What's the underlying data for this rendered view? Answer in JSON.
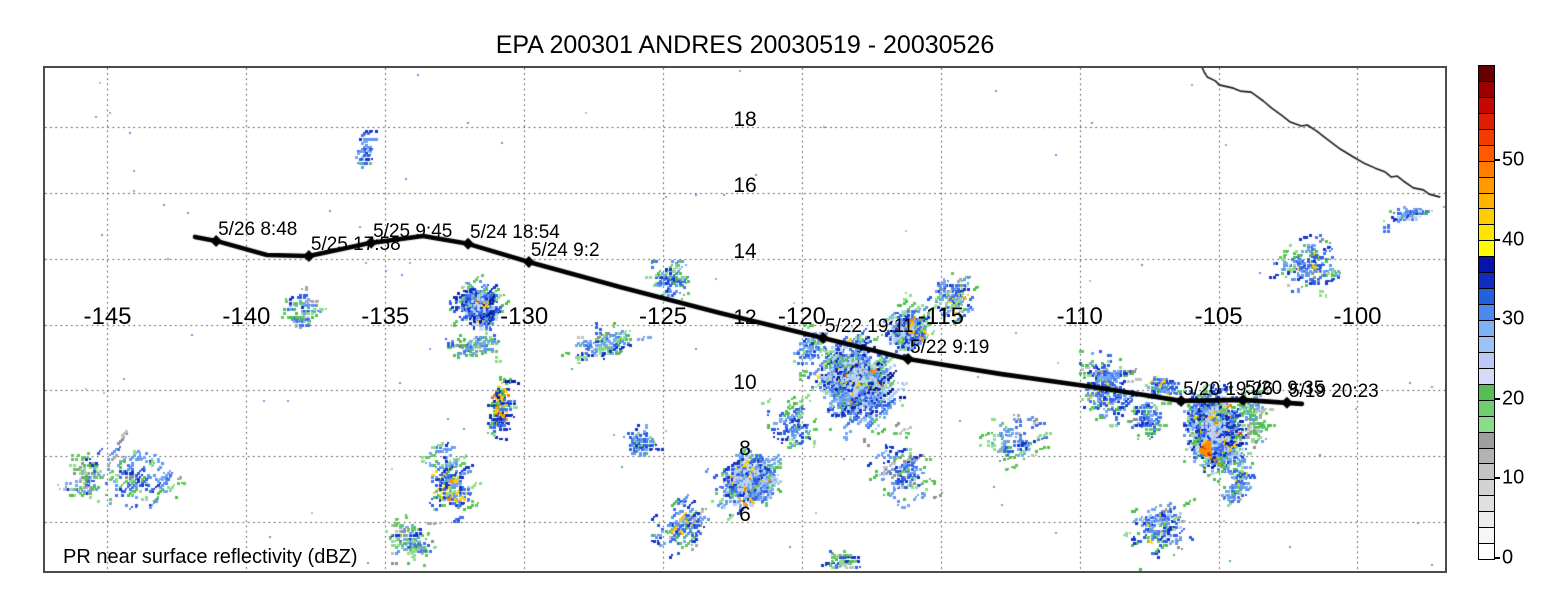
{
  "chart_data": {
    "type": "map-track",
    "title": "EPA 200301 ANDRES 20030519 - 20030526",
    "footer": "PR near surface reflectivity (dBZ)",
    "lon_range": [
      -147.25,
      -96.85
    ],
    "lat_range": [
      4.512,
      19.792
    ],
    "lon_ticks": [
      {
        "value": -145,
        "label": "-145"
      },
      {
        "value": -140,
        "label": "-140"
      },
      {
        "value": -135,
        "label": "-135"
      },
      {
        "value": -130,
        "label": "-130"
      },
      {
        "value": -125,
        "label": "-125"
      },
      {
        "value": -120,
        "label": "-120"
      },
      {
        "value": -115,
        "label": "-115"
      },
      {
        "value": -110,
        "label": "-110"
      },
      {
        "value": -105,
        "label": "-105"
      },
      {
        "value": -100,
        "label": "-100"
      }
    ],
    "lat_ticks": [
      {
        "value": 18,
        "label": "18"
      },
      {
        "value": 16,
        "label": "16"
      },
      {
        "value": 14,
        "label": "14"
      },
      {
        "value": 12,
        "label": "12"
      },
      {
        "value": 10,
        "label": "10"
      },
      {
        "value": 8,
        "label": "8"
      },
      {
        "value": 6,
        "label": "6"
      }
    ],
    "track": [
      {
        "lon": -141.85,
        "lat": 14.66
      },
      {
        "lon": -141.09,
        "lat": 14.54,
        "label": "5/26 8:48"
      },
      {
        "lon": -139.26,
        "lat": 14.11
      },
      {
        "lon": -137.75,
        "lat": 14.08,
        "label": "5/25 17:58"
      },
      {
        "lon": -135.51,
        "lat": 14.48,
        "label": "5/25 9:45"
      },
      {
        "lon": -133.64,
        "lat": 14.69
      },
      {
        "lon": -132.02,
        "lat": 14.45,
        "label": "5/24 18:54"
      },
      {
        "lon": -129.83,
        "lat": 13.9,
        "label": "5/24 9:2"
      },
      {
        "lon": -126.55,
        "lat": 13.14
      },
      {
        "lon": -122.95,
        "lat": 12.35
      },
      {
        "lon": -119.24,
        "lat": 11.59,
        "label": "5/22 19:11"
      },
      {
        "lon": -116.18,
        "lat": 10.95,
        "label": "5/22 9:19"
      },
      {
        "lon": -112.87,
        "lat": 10.5
      },
      {
        "lon": -109.27,
        "lat": 10.07
      },
      {
        "lon": -106.35,
        "lat": 9.68,
        "label": "5/20 19:26"
      },
      {
        "lon": -104.12,
        "lat": 9.71,
        "label": "5/20 9:35"
      },
      {
        "lon": -102.54,
        "lat": 9.62,
        "label": "5/19 20:23"
      },
      {
        "lon": -102.0,
        "lat": 9.59
      }
    ],
    "coastline": [
      [
        -105.63,
        19.88
      ],
      [
        -105.52,
        19.67
      ],
      [
        -105.41,
        19.52
      ],
      [
        -105.12,
        19.4
      ],
      [
        -104.98,
        19.28
      ],
      [
        -104.47,
        19.18
      ],
      [
        -104.22,
        19.09
      ],
      [
        -103.83,
        19.06
      ],
      [
        -103.68,
        18.97
      ],
      [
        -103.39,
        18.79
      ],
      [
        -103.1,
        18.58
      ],
      [
        -102.74,
        18.36
      ],
      [
        -102.42,
        18.15
      ],
      [
        -102.02,
        18.03
      ],
      [
        -101.81,
        18.06
      ],
      [
        -101.48,
        17.88
      ],
      [
        -101.05,
        17.6
      ],
      [
        -100.62,
        17.33
      ],
      [
        -100.15,
        17.09
      ],
      [
        -99.72,
        16.88
      ],
      [
        -99.36,
        16.75
      ],
      [
        -99.0,
        16.63
      ],
      [
        -98.78,
        16.48
      ],
      [
        -98.57,
        16.51
      ],
      [
        -98.35,
        16.36
      ],
      [
        -97.99,
        16.15
      ],
      [
        -97.63,
        16.09
      ],
      [
        -97.42,
        15.96
      ],
      [
        -97.02,
        15.87
      ]
    ],
    "colorbar": {
      "units": "dBZ",
      "vmin": 0,
      "vmax": 62,
      "cell_dbz": 2,
      "ticks": [
        {
          "value": 0,
          "label": "0"
        },
        {
          "value": 10,
          "label": "10"
        },
        {
          "value": 20,
          "label": "20"
        },
        {
          "value": 30,
          "label": "30"
        },
        {
          "value": 40,
          "label": "40"
        },
        {
          "value": 50,
          "label": "50"
        }
      ],
      "colors": [
        "#FFFFFF",
        "#F6F6F6",
        "#ECECEC",
        "#E0E0E0",
        "#D3D3D3",
        "#C4C4C4",
        "#B2B2B2",
        "#9E9E9E",
        "#8ADC8A",
        "#6FCE6F",
        "#57BE57",
        "#D8D8F8",
        "#BCC9F6",
        "#9FC2F6",
        "#7FB2F4",
        "#4B8AEC",
        "#2360DE",
        "#122CC2",
        "#0813AE",
        "#FFFC00",
        "#FFE600",
        "#FFCE00",
        "#FFB400",
        "#FF9A00",
        "#FF7E00",
        "#FF5A00",
        "#F33B00",
        "#DE1F00",
        "#C40A00",
        "#9B0000",
        "#660000"
      ]
    },
    "reflectivity_palette": {
      "b": [
        "#2E5FE6",
        "#1534C8",
        "#4272EC"
      ],
      "db": [
        "#0E2FB0",
        "#0A1E9C"
      ],
      "lb": [
        "#74A6F2",
        "#5E96F0"
      ],
      "pb": [
        "#AECBF5",
        "#BDD4F6"
      ],
      "vp": [
        "#D5DEF8"
      ],
      "g": [
        "#63C663",
        "#8FDC8F",
        "#4FBF4F"
      ],
      "y": [
        "#FFD300",
        "#FFC400"
      ],
      "o": [
        "#FF9000",
        "#FF7A00"
      ],
      "r": [
        "#E03010"
      ],
      "gy": [
        "#A5A5A5",
        "#8F8F8F",
        "#C0C0C0"
      ]
    },
    "reflectivity_clusters": [
      {
        "lon": -145.92,
        "lat": 7.28,
        "rx": 0.79,
        "ry": 0.76,
        "rot": 0,
        "n": 60,
        "mix": {
          "g": 45,
          "gy": 25,
          "lb": 20,
          "b": 10
        }
      },
      {
        "lon": -144.01,
        "lat": 7.43,
        "rx": 1.44,
        "ry": 1.58,
        "rot": -50,
        "n": 95,
        "mix": {
          "b": 30,
          "lb": 30,
          "g": 30,
          "gy": 10
        }
      },
      {
        "lon": -138.14,
        "lat": 12.44,
        "rx": 0.58,
        "ry": 0.67,
        "rot": 0,
        "n": 50,
        "mix": {
          "b": 35,
          "lb": 30,
          "g": 25,
          "gy": 10
        }
      },
      {
        "lon": -135.84,
        "lat": 17.36,
        "rx": 0.2,
        "ry": 0.67,
        "rot": 0,
        "n": 30,
        "mix": {
          "b": 50,
          "lb": 30,
          "g": 20
        }
      },
      {
        "lon": -131.77,
        "lat": 12.59,
        "rx": 0.84,
        "ry": 0.9,
        "rot": -40,
        "n": 260,
        "halo": true,
        "mix": {
          "b": 45,
          "db": 15,
          "lb": 20,
          "g": 12,
          "y": 6,
          "o": 2
        }
      },
      {
        "lon": -131.95,
        "lat": 11.38,
        "rx": 1.08,
        "ry": 0.43,
        "rot": 0,
        "n": 55,
        "mix": {
          "lb": 30,
          "g": 40,
          "b": 20,
          "gy": 10
        }
      },
      {
        "lon": -130.98,
        "lat": 9.56,
        "rx": 0.4,
        "ry": 1.15,
        "rot": 10,
        "n": 110,
        "mix": {
          "b": 40,
          "db": 15,
          "y": 18,
          "o": 7,
          "g": 20
        }
      },
      {
        "lon": -132.85,
        "lat": 7.28,
        "rx": 1.01,
        "ry": 1.37,
        "rot": -20,
        "n": 130,
        "mix": {
          "b": 30,
          "lb": 20,
          "g": 30,
          "y": 10,
          "o": 5,
          "gy": 5
        }
      },
      {
        "lon": -134.18,
        "lat": 5.46,
        "rx": 0.94,
        "ry": 0.73,
        "rot": 0,
        "n": 80,
        "mix": {
          "g": 50,
          "b": 20,
          "lb": 20,
          "gy": 10
        }
      },
      {
        "lon": -127.27,
        "lat": 11.38,
        "rx": 1.51,
        "ry": 0.49,
        "rot": -18,
        "n": 75,
        "mix": {
          "b": 35,
          "lb": 25,
          "g": 30,
          "gy": 10
        }
      },
      {
        "lon": -124.82,
        "lat": 13.44,
        "rx": 0.65,
        "ry": 0.79,
        "rot": -30,
        "n": 60,
        "mix": {
          "b": 45,
          "lb": 25,
          "g": 30
        }
      },
      {
        "lon": -125.83,
        "lat": 8.49,
        "rx": 0.72,
        "ry": 0.55,
        "rot": 0,
        "n": 40,
        "mix": {
          "b": 40,
          "lb": 30,
          "g": 30
        }
      },
      {
        "lon": -122.05,
        "lat": 7.28,
        "rx": 1.45,
        "ry": 1.03,
        "rot": -35,
        "n": 330,
        "halo": true,
        "mix": {
          "b": 30,
          "lb": 25,
          "pb": 12,
          "g": 15,
          "y": 10,
          "o": 8
        }
      },
      {
        "lon": -124.39,
        "lat": 5.91,
        "rx": 1.37,
        "ry": 0.79,
        "rot": -40,
        "n": 105,
        "mix": {
          "b": 40,
          "lb": 25,
          "g": 20,
          "y": 8,
          "gy": 7
        }
      },
      {
        "lon": -120.43,
        "lat": 8.95,
        "rx": 0.72,
        "ry": 0.91,
        "rot": -30,
        "n": 70,
        "mix": {
          "b": 40,
          "lb": 30,
          "g": 30
        }
      },
      {
        "lon": -118.2,
        "lat": 10.31,
        "rx": 1.6,
        "ry": 1.66,
        "rot": -38,
        "n": 700,
        "halo": true,
        "mix": {
          "b": 32,
          "db": 8,
          "lb": 25,
          "pb": 15,
          "g": 12,
          "y": 5,
          "o": 3
        }
      },
      {
        "lon": -116.29,
        "lat": 11.83,
        "rx": 0.94,
        "ry": 0.91,
        "rot": -35,
        "n": 165,
        "halo": true,
        "mix": {
          "b": 35,
          "lb": 25,
          "g": 20,
          "y": 8,
          "o": 5,
          "pb": 7
        }
      },
      {
        "lon": -114.67,
        "lat": 12.9,
        "rx": 0.94,
        "ry": 0.85,
        "rot": -30,
        "n": 90,
        "mix": {
          "b": 30,
          "lb": 25,
          "g": 25,
          "y": 8,
          "gy": 12
        }
      },
      {
        "lon": -119.89,
        "lat": 11.23,
        "rx": 0.5,
        "ry": 0.91,
        "rot": 0,
        "n": 45,
        "mix": {
          "b": 40,
          "lb": 30,
          "g": 30
        }
      },
      {
        "lon": -116.47,
        "lat": 7.58,
        "rx": 1.08,
        "ry": 1.37,
        "rot": -25,
        "n": 90,
        "mix": {
          "b": 35,
          "lb": 25,
          "g": 25,
          "gy": 15
        }
      },
      {
        "lon": -118.7,
        "lat": 4.85,
        "rx": 0.79,
        "ry": 0.36,
        "rot": 0,
        "n": 35,
        "mix": {
          "b": 30,
          "g": 40,
          "gy": 30
        }
      },
      {
        "lon": -112.51,
        "lat": 8.49,
        "rx": 1.3,
        "ry": 0.79,
        "rot": -20,
        "n": 65,
        "mix": {
          "g": 35,
          "b": 25,
          "lb": 25,
          "gy": 15
        }
      },
      {
        "lon": -109.09,
        "lat": 10.16,
        "rx": 1.02,
        "ry": 1.3,
        "rot": -15,
        "n": 170,
        "mix": {
          "b": 40,
          "lb": 25,
          "g": 20,
          "y": 5,
          "gy": 10
        }
      },
      {
        "lon": -107.65,
        "lat": 9.25,
        "rx": 0.72,
        "ry": 0.85,
        "rot": 0,
        "n": 70,
        "mix": {
          "b": 40,
          "lb": 30,
          "g": 30
        }
      },
      {
        "lon": -105.24,
        "lat": 8.8,
        "rx": 1.16,
        "ry": 1.52,
        "rot": -12,
        "n": 850,
        "halo": true,
        "mix": {
          "b": 35,
          "db": 10,
          "lb": 20,
          "pb": 10,
          "g": 12,
          "y": 8,
          "o": 4,
          "r": 1
        }
      },
      {
        "lon": -105.6,
        "lat": 8.28,
        "rx": 0.18,
        "ry": 0.2,
        "rot": 0,
        "n": 26,
        "mix": {
          "o": 60,
          "r": 25,
          "y": 15
        }
      },
      {
        "lon": -104.41,
        "lat": 7.28,
        "rx": 0.5,
        "ry": 0.91,
        "rot": 10,
        "n": 70,
        "mix": {
          "b": 35,
          "lb": 25,
          "g": 30,
          "y": 5,
          "gy": 5
        }
      },
      {
        "lon": -103.87,
        "lat": 9.25,
        "rx": 0.43,
        "ry": 1.06,
        "rot": -8,
        "n": 80,
        "mix": {
          "g": 60,
          "gy": 20,
          "lb": 20
        }
      },
      {
        "lon": -107.11,
        "lat": 5.91,
        "rx": 1.3,
        "ry": 0.91,
        "rot": -30,
        "n": 130,
        "mix": {
          "b": 35,
          "lb": 25,
          "g": 20,
          "y": 6,
          "gy": 6,
          "pb": 8
        }
      },
      {
        "lon": -101.89,
        "lat": 13.81,
        "rx": 1.44,
        "ry": 0.97,
        "rot": -20,
        "n": 100,
        "mix": {
          "b": 35,
          "lb": 30,
          "g": 20,
          "y": 5,
          "gy": 10
        }
      },
      {
        "lon": -98.18,
        "lat": 15.39,
        "rx": 0.94,
        "ry": 0.27,
        "rot": -12,
        "n": 45,
        "mix": {
          "b": 35,
          "lb": 30,
          "pb": 15,
          "y": 8,
          "g": 12
        }
      },
      {
        "lon": -107.11,
        "lat": 10.16,
        "rx": 0.65,
        "ry": 0.43,
        "rot": 0,
        "n": 45,
        "mix": {
          "b": 40,
          "lb": 30,
          "y": 10,
          "g": 20
        }
      },
      {
        "uniform": true,
        "n": 90,
        "mix": {
          "g": 45,
          "gy": 30,
          "lb": 25
        }
      }
    ]
  }
}
